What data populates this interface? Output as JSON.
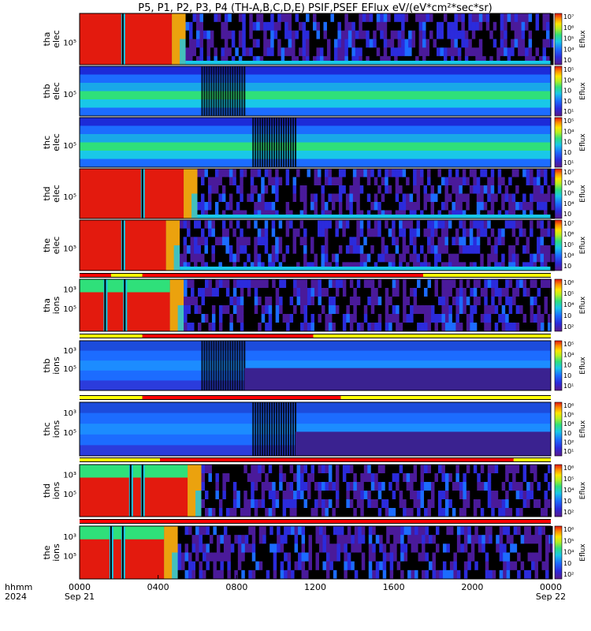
{
  "title": "P5, P1, P2, P3, P4 (TH-A,B,C,D,E) PSIF,PSEF EFlux eV/(eV*cm²*sec*sr)",
  "colorbar_label": "Eflux",
  "colorscale": [
    "#000000",
    "#5a1a8c",
    "#3b2bd8",
    "#1c6cff",
    "#19c8e8",
    "#2fe07a",
    "#b6f021",
    "#ffe600",
    "#ff8c00",
    "#e0140f"
  ],
  "status_colors": {
    "red": "#ff0000",
    "yellow": "#ffff00",
    "gap": "#000000"
  },
  "time_axis": {
    "label_top": "hhmm",
    "label_bottom": "2024",
    "ticks": [
      {
        "hour": 0,
        "label": "0000",
        "sub": "Sep 21"
      },
      {
        "hour": 4,
        "label": "0400",
        "sub": ""
      },
      {
        "hour": 8,
        "label": "0800",
        "sub": ""
      },
      {
        "hour": 12,
        "label": "1200",
        "sub": ""
      },
      {
        "hour": 16,
        "label": "1600",
        "sub": ""
      },
      {
        "hour": 20,
        "label": "2000",
        "sub": ""
      },
      {
        "hour": 24,
        "label": "0000",
        "sub": "Sep 22"
      }
    ]
  },
  "chart_data": {
    "type": "heatmap",
    "x_range_hours": [
      0,
      24
    ],
    "x_unit": "hhmm",
    "panels": [
      {
        "id": "tha-elec",
        "line1": "tha",
        "line2": "elec",
        "kind": "elec",
        "ytick": "10⁵",
        "cb": [
          "10⁷",
          "10⁶",
          "10⁵",
          "10⁴",
          "10⁳"
        ],
        "hot_end": 4.7,
        "spikes": [
          2.2
        ],
        "tail": "dark",
        "tail_start": 8.3
      },
      {
        "id": "thb-elec",
        "line1": "thb",
        "line2": "elec",
        "kind": "band",
        "ytick": "10⁵",
        "cb": [
          "10⁵",
          "10⁴",
          "10⁳",
          "10⁲",
          "10¹"
        ],
        "stripes": [
          6.2,
          8.4
        ]
      },
      {
        "id": "thc-elec",
        "line1": "thc",
        "line2": "elec",
        "kind": "band",
        "ytick": "10⁵",
        "cb": [
          "10⁵",
          "10⁴",
          "10⁳",
          "10⁲",
          "10¹"
        ],
        "stripes": [
          8.8,
          11.0
        ]
      },
      {
        "id": "thd-elec",
        "line1": "thd",
        "line2": "elec",
        "kind": "elec",
        "ytick": "10⁵",
        "cb": [
          "10⁷",
          "10⁶",
          "10⁵",
          "10⁴",
          "10⁳"
        ],
        "hot_end": 5.3,
        "spikes": [
          3.2
        ]
      },
      {
        "id": "the-elec",
        "line1": "the",
        "line2": "elec",
        "kind": "elec",
        "ytick": "10⁵",
        "cb": [
          "10⁷",
          "10⁶",
          "10⁵",
          "10⁴",
          "10⁳"
        ],
        "hot_end": 4.4,
        "spikes": [
          2.2
        ]
      },
      {
        "id": "tha-ions",
        "line1": "tha",
        "line2": "ions",
        "kind": "ions",
        "ytick": "10⁵",
        "ytick2": "10³",
        "cb": [
          "10⁶",
          "10⁵",
          "10⁴",
          "10⁳",
          "10²"
        ],
        "hot_end": 4.6,
        "spikes": [
          1.3,
          2.3
        ]
      },
      {
        "id": "thb-ions",
        "line1": "thb",
        "line2": "ions",
        "kind": "ionband",
        "ytick": "10⁵",
        "ytick2": "10³",
        "cb": [
          "10⁵",
          "10⁴",
          "10⁳",
          "10⁲",
          "10¹"
        ],
        "stripes": [
          6.2,
          8.4
        ]
      },
      {
        "id": "thc-ions",
        "line1": "thc",
        "line2": "ions",
        "kind": "ionband",
        "ytick": "10⁵",
        "ytick2": "10³",
        "cb": [
          "10⁶",
          "10⁵",
          "10⁴",
          "10⁳",
          "10²",
          "10¹"
        ],
        "stripes": [
          8.8,
          11.0
        ]
      },
      {
        "id": "thd-ions",
        "line1": "thd",
        "line2": "ions",
        "kind": "ions",
        "ytick": "10⁵",
        "ytick2": "10³",
        "cb": [
          "10⁶",
          "10⁵",
          "10⁴",
          "10⁳",
          "10²"
        ],
        "hot_end": 5.5,
        "spikes": [
          2.6,
          3.2
        ]
      },
      {
        "id": "the-ions",
        "line1": "the",
        "line2": "ions",
        "kind": "ions",
        "ytick": "10⁵",
        "ytick2": "10³",
        "cb": [
          "10⁶",
          "10⁵",
          "10⁴",
          "10⁳",
          "10²"
        ],
        "hot_end": 4.3,
        "spikes": [
          1.6,
          2.2
        ]
      }
    ],
    "status_bars": [
      {
        "after": "the-elec",
        "segments": [
          {
            "from": 0,
            "to": 1.6,
            "c": "red"
          },
          {
            "from": 1.6,
            "to": 3.2,
            "c": "yellow"
          },
          {
            "from": 3.2,
            "to": 17.5,
            "c": "red"
          },
          {
            "from": 17.5,
            "to": 24,
            "c": "yellow"
          }
        ]
      },
      {
        "after": "tha-ions",
        "segments": [
          {
            "from": 0,
            "to": 3.2,
            "c": "yellow"
          },
          {
            "from": 3.2,
            "to": 11.9,
            "c": "red"
          },
          {
            "from": 11.9,
            "to": 24,
            "c": "yellow"
          }
        ]
      },
      {
        "after": "thb-ions",
        "segments": [
          {
            "from": 0,
            "to": 3.2,
            "c": "yellow"
          },
          {
            "from": 3.2,
            "to": 13.3,
            "c": "red"
          },
          {
            "from": 13.3,
            "to": 24,
            "c": "yellow"
          }
        ]
      },
      {
        "after": "thc-ions",
        "segments": [
          {
            "from": 0,
            "to": 4.1,
            "c": "yellow"
          },
          {
            "from": 4.1,
            "to": 22.1,
            "c": "red"
          },
          {
            "from": 22.1,
            "to": 24,
            "c": "yellow"
          }
        ]
      },
      {
        "after": "thd-ions",
        "segments": [
          {
            "from": 0,
            "to": 24,
            "c": "red"
          }
        ]
      }
    ]
  }
}
